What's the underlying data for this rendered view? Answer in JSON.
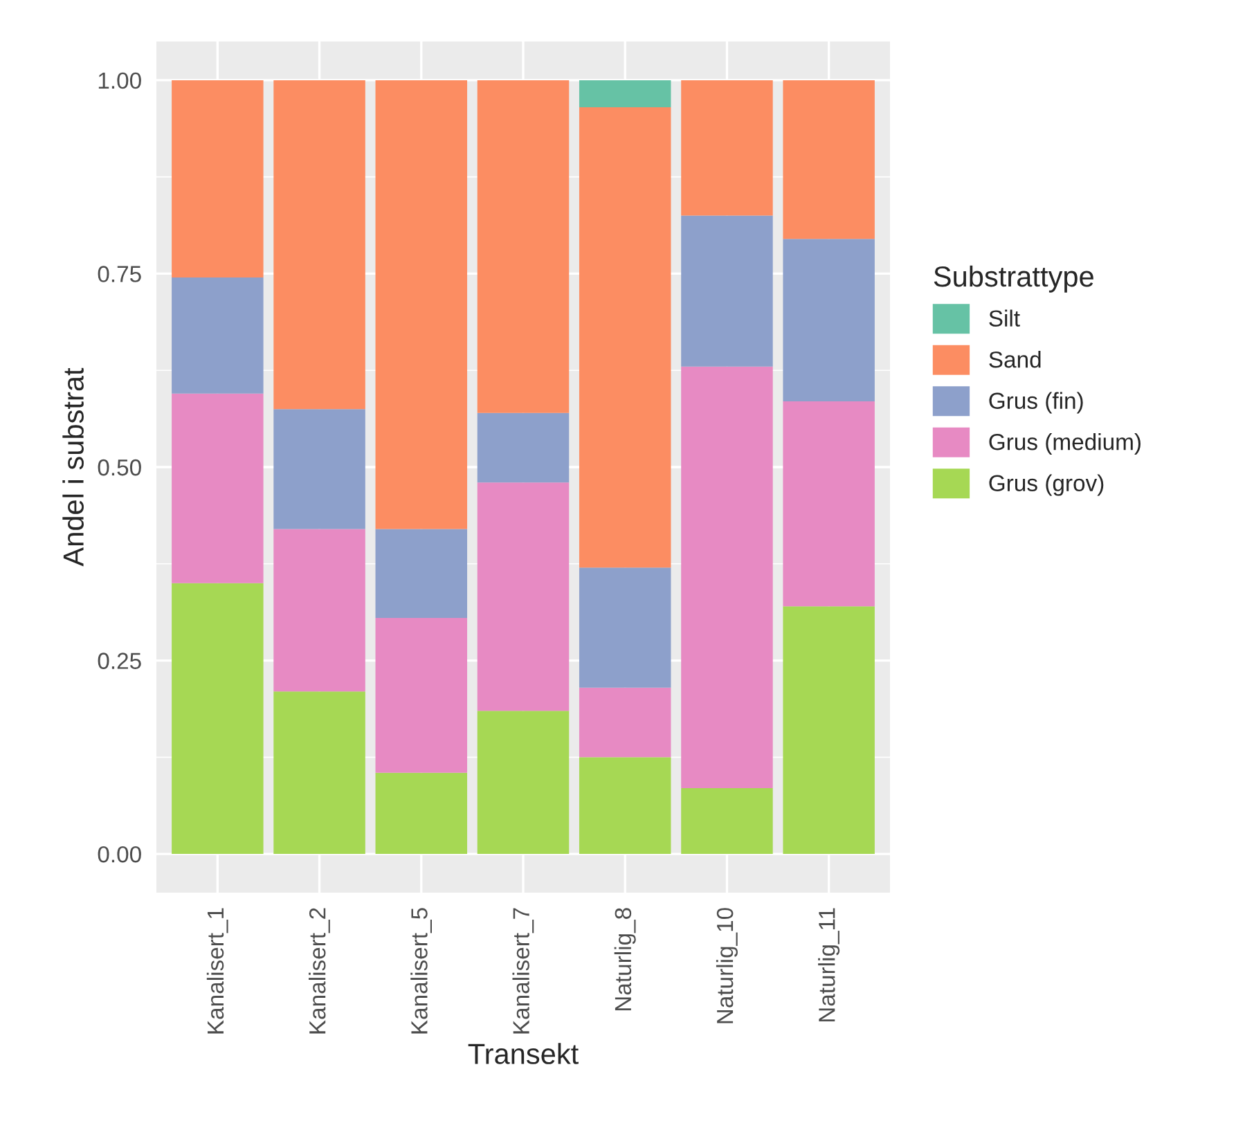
{
  "chart_data": {
    "type": "bar",
    "stacked": true,
    "xlabel": "Transekt",
    "ylabel": "Andel i substrat",
    "legend_title": "Substrattype",
    "legend": "right",
    "grid": true,
    "categories": [
      "Kanalisert_1",
      "Kanalisert_2",
      "Kanalisert_5",
      "Kanalisert_7",
      "Naturlig_8",
      "Naturlig_10",
      "Naturlig_11"
    ],
    "ylim": [
      -0.05,
      1.05
    ],
    "yticks": [
      {
        "value": 0,
        "label": "0.00"
      },
      {
        "value": 0.25,
        "label": "0.25"
      },
      {
        "value": 0.5,
        "label": "0.50"
      },
      {
        "value": 0.75,
        "label": "0.75"
      },
      {
        "value": 1,
        "label": "1.00"
      }
    ],
    "series": [
      {
        "name": "Grus (grov)",
        "color": "#a6d854",
        "values": [
          0.35,
          0.21,
          0.105,
          0.185,
          0.125,
          0.085,
          0.32
        ]
      },
      {
        "name": "Grus (medium)",
        "color": "#e78ac3",
        "values": [
          0.245,
          0.21,
          0.2,
          0.295,
          0.09,
          0.545,
          0.265
        ]
      },
      {
        "name": "Grus (fin)",
        "color": "#8da0cb",
        "values": [
          0.15,
          0.155,
          0.115,
          0.09,
          0.155,
          0.195,
          0.21
        ]
      },
      {
        "name": "Sand",
        "color": "#fc8d62",
        "values": [
          0.255,
          0.425,
          0.58,
          0.43,
          0.595,
          0.175,
          0.205
        ]
      },
      {
        "name": "Silt",
        "color": "#66c2a5",
        "values": [
          0,
          0,
          0,
          0,
          0.035,
          0,
          0
        ]
      }
    ]
  }
}
